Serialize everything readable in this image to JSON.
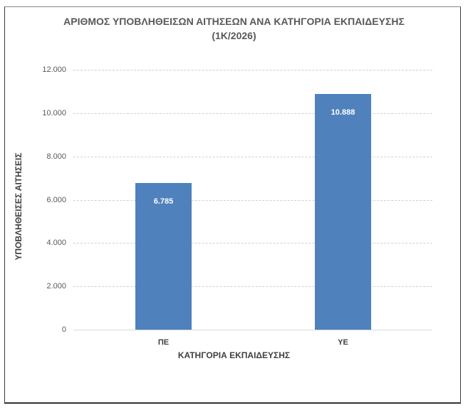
{
  "chart_data": {
    "type": "bar",
    "title": "ΑΡΙΘΜΟΣ ΥΠΟΒΛΗΘΕΙΣΩΝ ΑΙΤΗΣΕΩΝ ΑΝΑ ΚΑΤΗΓΟΡΙΑ ΕΚΠΑΙΔΕΥΣΗΣ",
    "subtitle": "(1Κ/2026)",
    "xlabel": "ΚΑΤΗΓΟΡΙΑ ΕΚΠΑΙΔΕΥΣΗΣ",
    "ylabel": "ΥΠΟΒΛΗΘΕΙΣΕΣ ΑΙΤΗΣΕΙΣ",
    "categories": [
      "ΠΕ",
      "ΥΕ"
    ],
    "values": [
      6785,
      10888
    ],
    "value_labels": [
      "6.785",
      "10.888"
    ],
    "ylim": [
      0,
      12000
    ],
    "yticks": [
      0,
      2000,
      4000,
      6000,
      8000,
      10000,
      12000
    ],
    "ytick_labels": [
      "0",
      "2.000",
      "4.000",
      "6.000",
      "8.000",
      "10.000",
      "12.000"
    ],
    "grid": true,
    "legend": "none",
    "bar_color": "#4f81bd"
  }
}
